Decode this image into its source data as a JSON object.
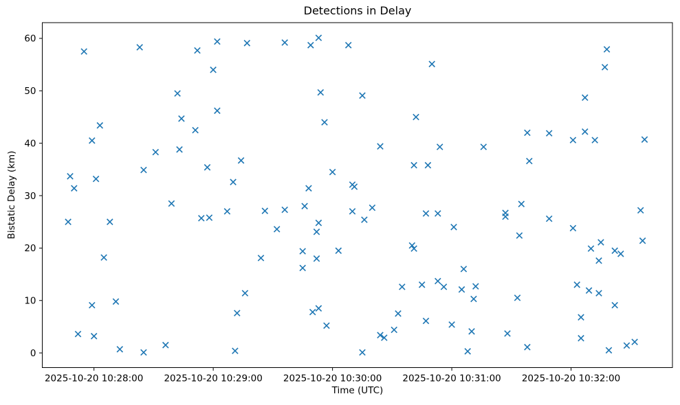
{
  "figure": {
    "title": "Detections in Delay",
    "xlabel": "Time (UTC)",
    "ylabel": "Bistatic Delay (km)"
  },
  "chart_data": {
    "type": "scatter",
    "title": "Detections in Delay",
    "xlabel": "Time (UTC)",
    "ylabel": "Bistatic Delay (km)",
    "date": "2025-10-20",
    "marker": "x",
    "marker_color": "#1f77b4",
    "grid": false,
    "x_tick_labels": [
      "2025-10-20 10:28:00",
      "2025-10-20 10:29:00",
      "2025-10-20 10:30:00",
      "2025-10-20 10:31:00",
      "2025-10-20 10:32:00"
    ],
    "y_ticks": [
      0,
      10,
      20,
      30,
      40,
      50,
      60
    ],
    "x_range": [
      "10:27:34",
      "10:32:51"
    ],
    "y_range": [
      -2.8,
      63.0
    ],
    "points": [
      [
        "10:27:47",
        25.0
      ],
      [
        "10:27:48",
        33.7
      ],
      [
        "10:27:50",
        31.4
      ],
      [
        "10:27:52",
        3.6
      ],
      [
        "10:27:55",
        57.5
      ],
      [
        "10:27:59",
        40.5
      ],
      [
        "10:27:59",
        9.1
      ],
      [
        "10:28:00",
        3.2
      ],
      [
        "10:28:01",
        33.2
      ],
      [
        "10:28:03",
        43.4
      ],
      [
        "10:28:05",
        18.2
      ],
      [
        "10:28:08",
        25.0
      ],
      [
        "10:28:11",
        9.8
      ],
      [
        "10:28:13",
        0.7
      ],
      [
        "10:28:23",
        58.3
      ],
      [
        "10:28:25",
        34.9
      ],
      [
        "10:28:25",
        0.1
      ],
      [
        "10:28:31",
        38.3
      ],
      [
        "10:28:36",
        1.5
      ],
      [
        "10:28:39",
        28.5
      ],
      [
        "10:28:42",
        49.5
      ],
      [
        "10:28:43",
        38.8
      ],
      [
        "10:28:44",
        44.7
      ],
      [
        "10:28:51",
        42.5
      ],
      [
        "10:28:52",
        57.7
      ],
      [
        "10:28:54",
        25.7
      ],
      [
        "10:28:57",
        35.4
      ],
      [
        "10:28:58",
        25.8
      ],
      [
        "10:29:00",
        54.0
      ],
      [
        "10:29:02",
        59.4
      ],
      [
        "10:29:02",
        46.2
      ],
      [
        "10:29:07",
        27.0
      ],
      [
        "10:29:10",
        32.6
      ],
      [
        "10:29:11",
        0.4
      ],
      [
        "10:29:12",
        7.6
      ],
      [
        "10:29:14",
        36.7
      ],
      [
        "10:29:16",
        11.4
      ],
      [
        "10:29:17",
        59.1
      ],
      [
        "10:29:24",
        18.1
      ],
      [
        "10:29:26",
        27.1
      ],
      [
        "10:29:32",
        23.6
      ],
      [
        "10:29:36",
        59.2
      ],
      [
        "10:29:36",
        27.3
      ],
      [
        "10:29:45",
        19.4
      ],
      [
        "10:29:45",
        16.2
      ],
      [
        "10:29:46",
        28.0
      ],
      [
        "10:29:48",
        31.4
      ],
      [
        "10:29:49",
        58.7
      ],
      [
        "10:29:50",
        7.8
      ],
      [
        "10:29:52",
        23.1
      ],
      [
        "10:29:52",
        18.0
      ],
      [
        "10:29:53",
        60.1
      ],
      [
        "10:29:53",
        24.8
      ],
      [
        "10:29:53",
        8.5
      ],
      [
        "10:29:54",
        49.7
      ],
      [
        "10:29:56",
        44.0
      ],
      [
        "10:29:57",
        5.2
      ],
      [
        "10:30:00",
        34.5
      ],
      [
        "10:30:03",
        19.5
      ],
      [
        "10:30:08",
        58.7
      ],
      [
        "10:30:10",
        32.1
      ],
      [
        "10:30:10",
        27.0
      ],
      [
        "10:30:11",
        31.7
      ],
      [
        "10:30:15",
        49.1
      ],
      [
        "10:30:15",
        0.1
      ],
      [
        "10:30:16",
        25.4
      ],
      [
        "10:30:20",
        27.7
      ],
      [
        "10:30:24",
        39.4
      ],
      [
        "10:30:24",
        3.4
      ],
      [
        "10:30:26",
        2.9
      ],
      [
        "10:30:31",
        4.4
      ],
      [
        "10:30:33",
        7.5
      ],
      [
        "10:30:35",
        12.6
      ],
      [
        "10:30:40",
        20.5
      ],
      [
        "10:30:41",
        35.8
      ],
      [
        "10:30:41",
        19.9
      ],
      [
        "10:30:42",
        45.0
      ],
      [
        "10:30:45",
        13.0
      ],
      [
        "10:30:47",
        26.6
      ],
      [
        "10:30:47",
        6.1
      ],
      [
        "10:30:48",
        35.8
      ],
      [
        "10:30:50",
        55.1
      ],
      [
        "10:30:53",
        26.6
      ],
      [
        "10:30:53",
        13.7
      ],
      [
        "10:30:54",
        39.3
      ],
      [
        "10:30:56",
        12.6
      ],
      [
        "10:31:00",
        5.4
      ],
      [
        "10:31:01",
        24.0
      ],
      [
        "10:31:05",
        12.1
      ],
      [
        "10:31:06",
        16.0
      ],
      [
        "10:31:08",
        0.3
      ],
      [
        "10:31:10",
        4.1
      ],
      [
        "10:31:11",
        10.3
      ],
      [
        "10:31:12",
        12.7
      ],
      [
        "10:31:16",
        39.3
      ],
      [
        "10:31:27",
        26.7
      ],
      [
        "10:31:27",
        26.0
      ],
      [
        "10:31:28",
        3.7
      ],
      [
        "10:31:33",
        10.5
      ],
      [
        "10:31:34",
        22.4
      ],
      [
        "10:31:35",
        28.4
      ],
      [
        "10:31:38",
        42.0
      ],
      [
        "10:31:38",
        1.1
      ],
      [
        "10:31:39",
        36.6
      ],
      [
        "10:31:49",
        41.9
      ],
      [
        "10:31:49",
        25.6
      ],
      [
        "10:32:01",
        40.6
      ],
      [
        "10:32:01",
        23.8
      ],
      [
        "10:32:03",
        13.0
      ],
      [
        "10:32:05",
        6.8
      ],
      [
        "10:32:05",
        2.8
      ],
      [
        "10:32:07",
        48.7
      ],
      [
        "10:32:07",
        42.2
      ],
      [
        "10:32:09",
        11.9
      ],
      [
        "10:32:10",
        19.9
      ],
      [
        "10:32:12",
        40.6
      ],
      [
        "10:32:14",
        17.6
      ],
      [
        "10:32:14",
        11.4
      ],
      [
        "10:32:15",
        21.1
      ],
      [
        "10:32:17",
        54.5
      ],
      [
        "10:32:18",
        57.9
      ],
      [
        "10:32:19",
        0.5
      ],
      [
        "10:32:22",
        19.5
      ],
      [
        "10:32:22",
        9.1
      ],
      [
        "10:32:25",
        18.9
      ],
      [
        "10:32:28",
        1.4
      ],
      [
        "10:32:32",
        2.1
      ],
      [
        "10:32:35",
        27.2
      ],
      [
        "10:32:36",
        21.4
      ],
      [
        "10:32:37",
        40.7
      ]
    ]
  }
}
